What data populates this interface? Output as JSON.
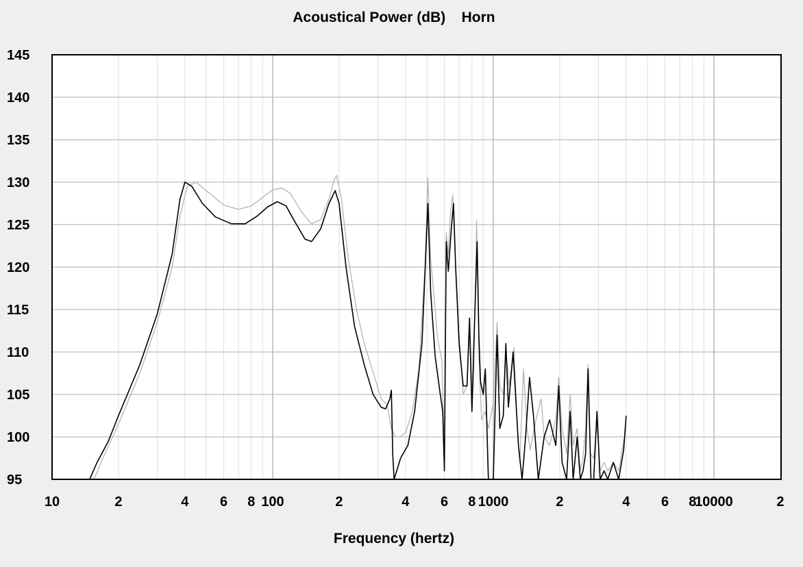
{
  "chart_data": {
    "type": "line",
    "title": "Acoustical Power (dB)    Horn",
    "xlabel": "Frequency (hertz)",
    "ylabel": "",
    "x_scale": "log",
    "xlim": [
      10,
      20000
    ],
    "ylim": [
      95,
      145
    ],
    "grid": true,
    "legend": "none",
    "y_ticks": [
      "145",
      "140",
      "135",
      "130",
      "125",
      "120",
      "115",
      "110",
      "105",
      "100",
      "95"
    ],
    "x_ticks": [
      {
        "value": 10,
        "label": "10"
      },
      {
        "value": 20,
        "label": "2"
      },
      {
        "value": 40,
        "label": "4"
      },
      {
        "value": 60,
        "label": "6"
      },
      {
        "value": 80,
        "label": "8"
      },
      {
        "value": 100,
        "label": "100"
      },
      {
        "value": 200,
        "label": "2"
      },
      {
        "value": 400,
        "label": "4"
      },
      {
        "value": 600,
        "label": "6"
      },
      {
        "value": 800,
        "label": "8"
      },
      {
        "value": 1000,
        "label": "1000"
      },
      {
        "value": 2000,
        "label": "2"
      },
      {
        "value": 4000,
        "label": "4"
      },
      {
        "value": 6000,
        "label": "6"
      },
      {
        "value": 8000,
        "label": "8"
      },
      {
        "value": 10000,
        "label": "10000"
      },
      {
        "value": 20000,
        "label": "2"
      }
    ],
    "series": [
      {
        "color": "#b4b4b4",
        "points": [
          [
            15.5,
            95
          ],
          [
            17,
            97.5
          ],
          [
            20,
            101.5
          ],
          [
            25,
            107.5
          ],
          [
            30,
            113.5
          ],
          [
            35,
            120
          ],
          [
            38,
            126
          ],
          [
            41,
            129.5
          ],
          [
            45,
            130
          ],
          [
            50,
            129
          ],
          [
            60,
            127.3
          ],
          [
            70,
            126.8
          ],
          [
            80,
            127.2
          ],
          [
            90,
            128.2
          ],
          [
            100,
            129.1
          ],
          [
            110,
            129.3
          ],
          [
            120,
            128.7
          ],
          [
            135,
            126.5
          ],
          [
            150,
            125.1
          ],
          [
            165,
            125.6
          ],
          [
            180,
            128
          ],
          [
            190,
            130.3
          ],
          [
            195,
            130.8
          ],
          [
            205,
            128
          ],
          [
            220,
            121
          ],
          [
            240,
            115
          ],
          [
            260,
            111
          ],
          [
            290,
            107
          ],
          [
            310,
            104.5
          ],
          [
            330,
            103.8
          ],
          [
            345,
            101
          ],
          [
            360,
            100
          ],
          [
            380,
            100
          ],
          [
            400,
            100.5
          ],
          [
            430,
            103
          ],
          [
            460,
            108
          ],
          [
            490,
            120
          ],
          [
            505,
            130.5
          ],
          [
            520,
            121
          ],
          [
            560,
            111.5
          ],
          [
            585,
            109
          ],
          [
            600,
            97
          ],
          [
            612,
            124
          ],
          [
            625,
            121.5
          ],
          [
            640,
            126.5
          ],
          [
            655,
            128.5
          ],
          [
            670,
            122
          ],
          [
            700,
            112
          ],
          [
            730,
            105
          ],
          [
            760,
            106
          ],
          [
            780,
            113
          ],
          [
            800,
            103
          ],
          [
            815,
            107.5
          ],
          [
            840,
            125.5
          ],
          [
            860,
            110
          ],
          [
            885,
            102
          ],
          [
            920,
            103
          ],
          [
            950,
            101
          ],
          [
            1000,
            104
          ],
          [
            1040,
            113.5
          ],
          [
            1070,
            106
          ],
          [
            1110,
            105
          ],
          [
            1140,
            110.5
          ],
          [
            1180,
            106
          ],
          [
            1240,
            110.5
          ],
          [
            1290,
            100
          ],
          [
            1320,
            97
          ],
          [
            1370,
            108
          ],
          [
            1420,
            101
          ],
          [
            1470,
            98.5
          ],
          [
            1560,
            102
          ],
          [
            1650,
            104.5
          ],
          [
            1700,
            100
          ],
          [
            1800,
            99
          ],
          [
            1920,
            102
          ],
          [
            1980,
            107
          ],
          [
            2050,
            101
          ],
          [
            2150,
            98
          ],
          [
            2230,
            105
          ],
          [
            2300,
            99
          ],
          [
            2400,
            101
          ],
          [
            2480,
            96
          ],
          [
            2550,
            97.5
          ],
          [
            2620,
            101
          ],
          [
            2680,
            108.5
          ],
          [
            2750,
            98
          ],
          [
            2850,
            97.5
          ],
          [
            2950,
            101.5
          ],
          [
            3050,
            96
          ],
          [
            3180,
            97
          ],
          [
            3300,
            96
          ],
          [
            3500,
            97
          ],
          [
            3700,
            96
          ],
          [
            3900,
            99.5
          ],
          [
            4000,
            101
          ]
        ]
      },
      {
        "color": "#000000",
        "points": [
          [
            14.8,
            95
          ],
          [
            16,
            97
          ],
          [
            18,
            99.5
          ],
          [
            20,
            102.5
          ],
          [
            25,
            108.5
          ],
          [
            30,
            114.5
          ],
          [
            35,
            121.5
          ],
          [
            38,
            128
          ],
          [
            40,
            130
          ],
          [
            43,
            129.5
          ],
          [
            48,
            127.5
          ],
          [
            55,
            125.9
          ],
          [
            65,
            125.1
          ],
          [
            75,
            125.1
          ],
          [
            85,
            126
          ],
          [
            95,
            127.1
          ],
          [
            105,
            127.7
          ],
          [
            115,
            127.2
          ],
          [
            125,
            125.5
          ],
          [
            140,
            123.3
          ],
          [
            150,
            123
          ],
          [
            165,
            124.5
          ],
          [
            180,
            127.5
          ],
          [
            192,
            129
          ],
          [
            200,
            127.5
          ],
          [
            215,
            120
          ],
          [
            235,
            113
          ],
          [
            260,
            108.5
          ],
          [
            285,
            105
          ],
          [
            310,
            103.5
          ],
          [
            325,
            103.3
          ],
          [
            340,
            104.5
          ],
          [
            345,
            105.5
          ],
          [
            350,
            98
          ],
          [
            355,
            95
          ],
          [
            380,
            97.5
          ],
          [
            410,
            99
          ],
          [
            440,
            103
          ],
          [
            475,
            111
          ],
          [
            495,
            122
          ],
          [
            505,
            127.5
          ],
          [
            520,
            117
          ],
          [
            545,
            109.5
          ],
          [
            575,
            105
          ],
          [
            590,
            103
          ],
          [
            600,
            96
          ],
          [
            612,
            123
          ],
          [
            625,
            119.5
          ],
          [
            645,
            124.5
          ],
          [
            660,
            127.5
          ],
          [
            675,
            120
          ],
          [
            700,
            111
          ],
          [
            730,
            106
          ],
          [
            760,
            106
          ],
          [
            780,
            114
          ],
          [
            800,
            103
          ],
          [
            820,
            112.5
          ],
          [
            845,
            123
          ],
          [
            860,
            112
          ],
          [
            875,
            106.5
          ],
          [
            900,
            105
          ],
          [
            920,
            108
          ],
          [
            950,
            95
          ],
          [
            1000,
            95
          ],
          [
            1040,
            112
          ],
          [
            1070,
            101
          ],
          [
            1110,
            102.5
          ],
          [
            1140,
            111
          ],
          [
            1170,
            103.5
          ],
          [
            1230,
            110
          ],
          [
            1300,
            99
          ],
          [
            1350,
            95
          ],
          [
            1400,
            100
          ],
          [
            1460,
            107
          ],
          [
            1520,
            102.5
          ],
          [
            1600,
            95
          ],
          [
            1700,
            100
          ],
          [
            1800,
            102
          ],
          [
            1920,
            99
          ],
          [
            1980,
            106
          ],
          [
            2050,
            97
          ],
          [
            2150,
            95
          ],
          [
            2230,
            103
          ],
          [
            2300,
            95
          ],
          [
            2400,
            100
          ],
          [
            2480,
            95
          ],
          [
            2550,
            96
          ],
          [
            2620,
            98
          ],
          [
            2690,
            108
          ],
          [
            2770,
            95
          ],
          [
            2850,
            95
          ],
          [
            2950,
            103
          ],
          [
            3050,
            95
          ],
          [
            3180,
            96
          ],
          [
            3300,
            95
          ],
          [
            3500,
            97
          ],
          [
            3700,
            95
          ],
          [
            3900,
            98.5
          ],
          [
            4000,
            102.5
          ]
        ]
      }
    ]
  }
}
